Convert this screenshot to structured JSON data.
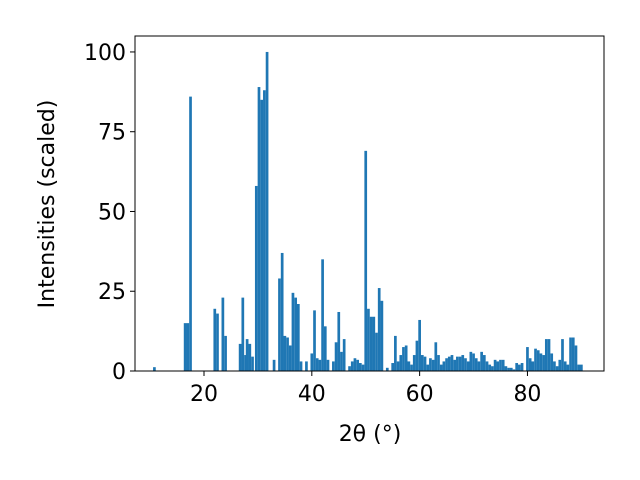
{
  "chart_data": {
    "type": "bar",
    "xlabel": "2θ (°)",
    "ylabel": "Intensities (scaled)",
    "color": "#1f77b4",
    "x": [
      10.8,
      16.5,
      17,
      17.5,
      22,
      22.5,
      23.5,
      24,
      26.7,
      27.2,
      27.7,
      28,
      28.5,
      29,
      29.7,
      30.2,
      30.7,
      31.2,
      31.7,
      33,
      34,
      34.5,
      35,
      35.5,
      36,
      36.5,
      37,
      37.5,
      38,
      39,
      40,
      40.5,
      41,
      41.5,
      42,
      42.5,
      43,
      44,
      44.5,
      45,
      45.5,
      46,
      47,
      47.5,
      48,
      48.5,
      49,
      49.5,
      50,
      50.5,
      51,
      51.5,
      52,
      52.5,
      53,
      54,
      55,
      55.5,
      56,
      56.5,
      57,
      57.5,
      58,
      58.5,
      59,
      59.5,
      60,
      60.5,
      61,
      61.5,
      62,
      62.5,
      63,
      63.5,
      64,
      64.5,
      65,
      65.5,
      66,
      66.5,
      67,
      67.5,
      68,
      68.5,
      69,
      69.5,
      70,
      70.5,
      71,
      71.5,
      72,
      72.5,
      73,
      73.5,
      74,
      74.5,
      75,
      75.5,
      76,
      76.5,
      77,
      77.5,
      78,
      78.5,
      79,
      80,
      80.5,
      81,
      81.5,
      82,
      82.5,
      83,
      83.5,
      84,
      84.5,
      85,
      85.5,
      86,
      86.5,
      87,
      87.5,
      88,
      88.5,
      89,
      89.5,
      90
    ],
    "values": [
      1.2,
      15,
      15,
      86,
      19.5,
      18,
      23,
      11,
      8.5,
      23,
      5,
      10,
      8.5,
      4.5,
      58,
      89,
      85,
      88,
      100,
      3.5,
      29,
      37,
      11,
      10.5,
      8,
      24.5,
      23,
      21,
      3,
      3,
      5.5,
      19,
      4,
      3.5,
      35,
      14,
      3.5,
      3,
      9,
      18.5,
      6,
      10,
      1.5,
      3,
      4,
      3.5,
      2.5,
      2,
      69,
      19.5,
      17,
      17,
      12,
      26,
      22,
      1,
      2.5,
      11,
      3,
      5,
      7.5,
      8,
      3,
      2,
      5,
      9.5,
      16,
      5,
      4.5,
      2,
      4,
      3.5,
      9,
      5,
      2,
      3,
      4,
      4.5,
      5,
      3.5,
      4.5,
      4.5,
      5,
      4,
      3,
      6,
      5.5,
      4,
      3,
      6,
      5,
      3,
      2,
      1.5,
      3.5,
      3,
      3.5,
      3.5,
      1.5,
      1,
      1,
      0.5,
      2.5,
      2,
      2.5,
      7.5,
      4,
      3,
      7,
      6.5,
      5.5,
      5,
      10,
      10,
      5.5,
      3,
      1.5,
      3.5,
      10,
      3,
      2,
      10.5,
      10.5,
      8,
      2,
      2
    ],
    "xlim": [
      7.2,
      94.2
    ],
    "ylim": [
      0,
      105
    ],
    "xticks": [
      20,
      40,
      60,
      80
    ],
    "yticks": [
      0,
      25,
      50,
      75,
      100
    ]
  }
}
